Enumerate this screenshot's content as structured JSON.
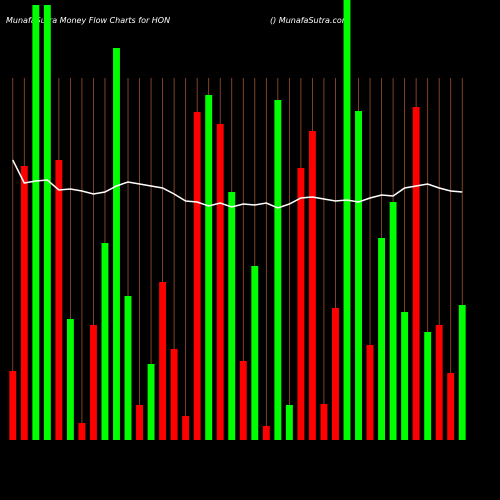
{
  "chart_data": {
    "type": "bar",
    "title": "MunafaSutra  Money Flow  Charts for HON",
    "subtitle": "() MunafaSutra.com",
    "ylim": [
      0,
      440
    ],
    "series": [
      {
        "name": "Money Flow",
        "type": "bar",
        "values": [
          69,
          274,
          435,
          435,
          280,
          121,
          17,
          115,
          197,
          392,
          144,
          35,
          76,
          158,
          91,
          24,
          328,
          345,
          316,
          248,
          79,
          174,
          14,
          340,
          35,
          272,
          309,
          36,
          132,
          440,
          329,
          95,
          202,
          238,
          128,
          333,
          108,
          115,
          67,
          135
        ],
        "colors": [
          "#ff0000",
          "#ff0000",
          "#00ff00",
          "#00ff00",
          "#ff0000",
          "#00ff00",
          "#ff0000",
          "#ff0000",
          "#00ff00",
          "#00ff00",
          "#00ff00",
          "#ff0000",
          "#00ff00",
          "#ff0000",
          "#ff0000",
          "#ff0000",
          "#ff0000",
          "#00ff00",
          "#ff0000",
          "#00ff00",
          "#ff0000",
          "#00ff00",
          "#ff0000",
          "#00ff00",
          "#00ff00",
          "#ff0000",
          "#ff0000",
          "#ff0000",
          "#ff0000",
          "#00ff00",
          "#00ff00",
          "#ff0000",
          "#00ff00",
          "#00ff00",
          "#00ff00",
          "#ff0000",
          "#00ff00",
          "#ff0000",
          "#ff0000",
          "#00ff00"
        ]
      },
      {
        "name": "Price",
        "type": "line",
        "color": "#ffffff",
        "values": [
          280,
          257,
          259,
          260,
          250,
          251,
          249,
          246,
          248,
          254,
          258,
          256,
          254,
          252,
          246,
          239,
          238,
          234,
          237,
          233,
          236,
          235,
          237,
          232,
          236,
          242,
          243,
          241,
          239,
          240,
          238,
          242,
          245,
          244,
          252,
          254,
          256,
          252,
          249,
          248
        ]
      }
    ]
  }
}
